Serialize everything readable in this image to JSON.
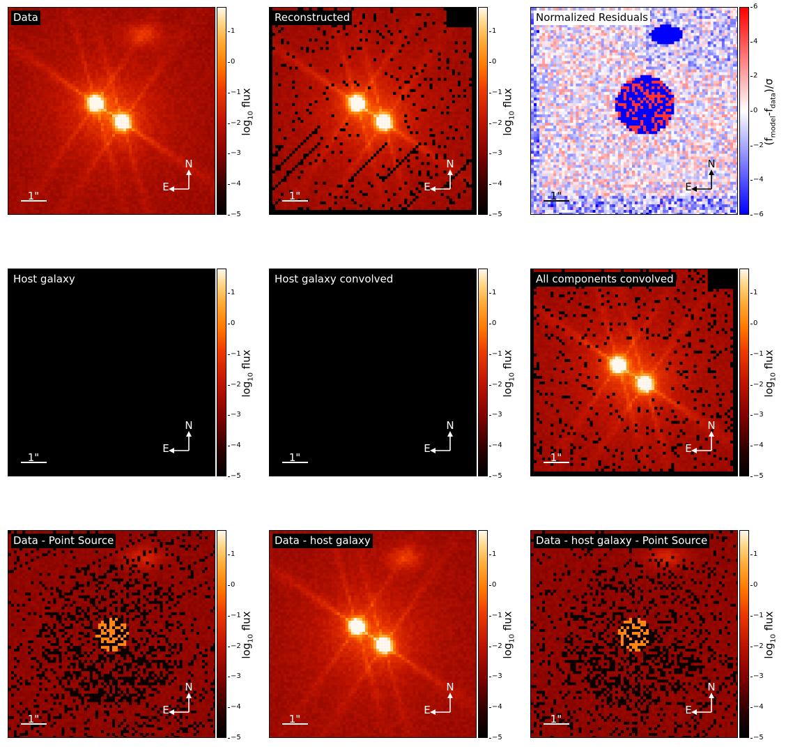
{
  "figure": {
    "panels": [
      {
        "title": "Data",
        "title_style": "dark",
        "image": "data",
        "cbar": "heat",
        "arrow_color": "#ffffff",
        "scale_color": "#ffffff"
      },
      {
        "title": "Reconstructed",
        "title_style": "dark",
        "image": "recon",
        "cbar": "heat",
        "arrow_color": "#ffffff",
        "scale_color": "#ffffff"
      },
      {
        "title": "Normalized Residuals",
        "title_style": "light",
        "image": "resid",
        "cbar": "bwr",
        "arrow_color": "#000000",
        "scale_color": "#000000"
      },
      {
        "title": "Host galaxy",
        "title_style": "dark",
        "image": "black",
        "cbar": "heat",
        "arrow_color": "#ffffff",
        "scale_color": "#ffffff"
      },
      {
        "title": "Host galaxy convolved",
        "title_style": "dark",
        "image": "black",
        "cbar": "heat",
        "arrow_color": "#ffffff",
        "scale_color": "#ffffff"
      },
      {
        "title": "All components convolved",
        "title_style": "dark",
        "image": "recon",
        "cbar": "heat",
        "arrow_color": "#ffffff",
        "scale_color": "#ffffff"
      },
      {
        "title": "Data - Point Source",
        "title_style": "dark",
        "image": "sub",
        "cbar": "heat",
        "arrow_color": "#ffffff",
        "scale_color": "#ffffff"
      },
      {
        "title": "Data - host galaxy",
        "title_style": "dark",
        "image": "data",
        "cbar": "heat",
        "arrow_color": "#ffffff",
        "scale_color": "#ffffff"
      },
      {
        "title": "Data - host galaxy - Point Source",
        "title_style": "dark",
        "image": "sub",
        "cbar": "heat",
        "arrow_color": "#ffffff",
        "scale_color": "#ffffff"
      }
    ],
    "scale_bar_label": "1\"",
    "compass": {
      "north": "N",
      "east": "E"
    },
    "colorbars": {
      "flux": {
        "label": "log₁₀ flux",
        "ticks": [
          "1",
          "0",
          "−1",
          "−2",
          "−3",
          "−4",
          "−5"
        ],
        "range": [
          -5,
          1.8
        ]
      },
      "resid": {
        "label": "(f_model-f_data)/σ",
        "ticks": [
          "6",
          "4",
          "2",
          "0",
          "−2",
          "−4",
          "−6"
        ],
        "range": [
          -6,
          6
        ]
      }
    },
    "colors": {
      "heat_low": "#000000",
      "heat_mid": "#d01000",
      "heat_high": "#ffffff",
      "resid_neg": "#0000ff",
      "resid_zero": "#ffffff",
      "resid_pos": "#ff0000"
    }
  },
  "chart_data": [
    {
      "type": "heatmap",
      "title": "Data",
      "colorbar_label": "log₁₀ flux",
      "vmin": -5,
      "vmax": 1.8
    },
    {
      "type": "heatmap",
      "title": "Reconstructed",
      "colorbar_label": "log₁₀ flux",
      "vmin": -5,
      "vmax": 1.8
    },
    {
      "type": "heatmap",
      "title": "Normalized Residuals",
      "colorbar_label": "(f_model-f_data)/σ",
      "vmin": -6,
      "vmax": 6
    },
    {
      "type": "heatmap",
      "title": "Host galaxy",
      "colorbar_label": "log₁₀ flux",
      "vmin": -5,
      "vmax": 1.8
    },
    {
      "type": "heatmap",
      "title": "Host galaxy convolved",
      "colorbar_label": "log₁₀ flux",
      "vmin": -5,
      "vmax": 1.8
    },
    {
      "type": "heatmap",
      "title": "All components convolved",
      "colorbar_label": "log₁₀ flux",
      "vmin": -5,
      "vmax": 1.8
    },
    {
      "type": "heatmap",
      "title": "Data - Point Source",
      "colorbar_label": "log₁₀ flux",
      "vmin": -5,
      "vmax": 1.8
    },
    {
      "type": "heatmap",
      "title": "Data - host galaxy",
      "colorbar_label": "log₁₀ flux",
      "vmin": -5,
      "vmax": 1.8
    },
    {
      "type": "heatmap",
      "title": "Data - host galaxy - Point Source",
      "colorbar_label": "log₁₀ flux",
      "vmin": -5,
      "vmax": 1.8
    }
  ]
}
